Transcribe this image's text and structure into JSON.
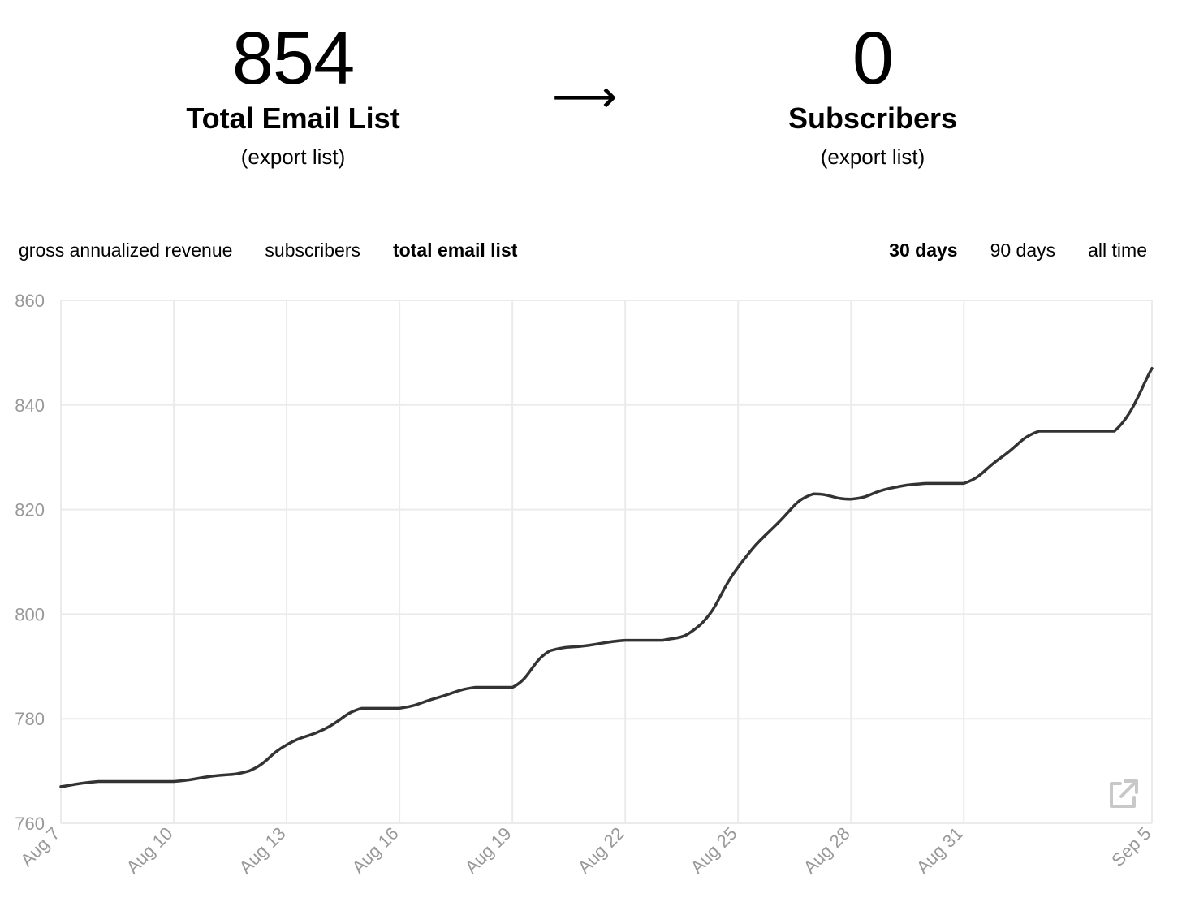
{
  "stats": {
    "left": {
      "value": "854",
      "label": "Total Email List",
      "link": "(export list)"
    },
    "arrow": "⟶",
    "right": {
      "value": "0",
      "label": "Subscribers",
      "link": "(export list)"
    }
  },
  "metric_tabs": [
    {
      "label": "gross annualized revenue",
      "active": false
    },
    {
      "label": "subscribers",
      "active": false
    },
    {
      "label": "total email list",
      "active": true
    }
  ],
  "range_tabs": [
    {
      "label": "30 days",
      "active": true
    },
    {
      "label": "90 days",
      "active": false
    },
    {
      "label": "all time",
      "active": false
    }
  ],
  "chart_data": {
    "type": "line",
    "x": [
      "Aug 7",
      "Aug 8",
      "Aug 9",
      "Aug 10",
      "Aug 11",
      "Aug 12",
      "Aug 13",
      "Aug 14",
      "Aug 15",
      "Aug 16",
      "Aug 17",
      "Aug 18",
      "Aug 19",
      "Aug 20",
      "Aug 21",
      "Aug 22",
      "Aug 23",
      "Aug 24",
      "Aug 25",
      "Aug 26",
      "Aug 27",
      "Aug 28",
      "Aug 29",
      "Aug 30",
      "Aug 31",
      "Sep 1",
      "Sep 2",
      "Sep 3",
      "Sep 4",
      "Sep 5"
    ],
    "series": [
      {
        "values": [
          767,
          768,
          768,
          768,
          769,
          770,
          775,
          778,
          782,
          782,
          784,
          786,
          786,
          793,
          794,
          795,
          795,
          798,
          809,
          817,
          823,
          822,
          824,
          825,
          825,
          830,
          835,
          835,
          835,
          847
        ]
      }
    ],
    "x_tick_labels": [
      "Aug 7",
      "Aug 10",
      "Aug 13",
      "Aug 16",
      "Aug 19",
      "Aug 22",
      "Aug 25",
      "Aug 28",
      "Aug 31",
      "Sep 5"
    ],
    "y_ticks": [
      760,
      780,
      800,
      820,
      840,
      860
    ],
    "ylim": [
      760,
      860
    ],
    "grid": true,
    "line_color": "#333333",
    "grid_color": "#ebebeb",
    "tick_label_color": "#999999"
  },
  "icons": {
    "external_link": "external-link-icon"
  }
}
